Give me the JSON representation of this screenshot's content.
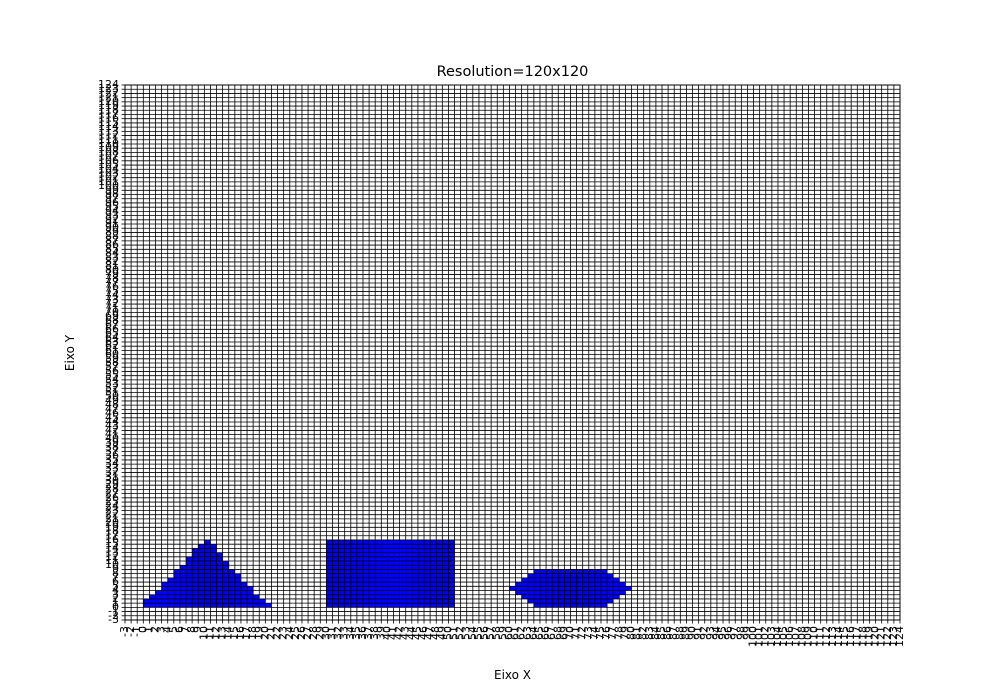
{
  "chart_data": {
    "type": "heatmap",
    "title": "Resolution=120x120",
    "xlabel": "Eixo X",
    "ylabel": "Eixo Y",
    "xlim": [
      -3,
      124
    ],
    "ylim": [
      -3,
      124
    ],
    "grid": true,
    "grid_color": "#000000",
    "fill_color": "#0000ff",
    "background": "#ffffff",
    "x_ticks": [
      -3,
      -2,
      -1,
      0,
      1,
      2,
      3,
      4,
      5,
      6,
      7,
      8,
      9,
      10,
      11,
      12,
      13,
      14,
      15,
      16,
      17,
      18,
      19,
      20,
      21,
      22,
      23,
      24,
      25,
      26,
      27,
      28,
      29,
      30,
      31,
      32,
      33,
      34,
      35,
      36,
      37,
      38,
      39,
      40,
      41,
      42,
      43,
      44,
      45,
      46,
      47,
      48,
      49,
      50,
      51,
      52,
      53,
      54,
      55,
      56,
      57,
      58,
      59,
      60,
      61,
      62,
      63,
      64,
      65,
      66,
      67,
      68,
      69,
      70,
      71,
      72,
      73,
      74,
      75,
      76,
      77,
      78,
      79,
      80,
      81,
      82,
      83,
      84,
      85,
      86,
      87,
      88,
      89,
      90,
      91,
      92,
      93,
      94,
      95,
      96,
      97,
      98,
      99,
      100,
      101,
      102,
      103,
      104,
      105,
      106,
      107,
      108,
      109,
      110,
      111,
      112,
      113,
      114,
      115,
      116,
      117,
      118,
      119,
      120,
      121,
      122,
      123,
      124
    ],
    "y_ticks": [
      -3,
      -2,
      -1,
      0,
      1,
      2,
      3,
      4,
      5,
      6,
      7,
      8,
      9,
      10,
      11,
      12,
      13,
      14,
      15,
      16,
      17,
      18,
      19,
      20,
      21,
      22,
      23,
      24,
      25,
      26,
      27,
      28,
      29,
      30,
      31,
      32,
      33,
      34,
      35,
      36,
      37,
      38,
      39,
      40,
      41,
      42,
      43,
      44,
      45,
      46,
      47,
      48,
      49,
      50,
      51,
      52,
      53,
      54,
      55,
      56,
      57,
      58,
      59,
      60,
      61,
      62,
      63,
      64,
      65,
      66,
      67,
      68,
      69,
      70,
      71,
      72,
      73,
      74,
      75,
      76,
      77,
      78,
      79,
      80,
      81,
      82,
      83,
      84,
      85,
      86,
      87,
      88,
      89,
      90,
      91,
      92,
      93,
      94,
      95,
      96,
      97,
      98,
      99,
      100,
      101,
      102,
      103,
      104,
      105,
      106,
      107,
      108,
      109,
      110,
      111,
      112,
      113,
      114,
      115,
      116,
      117,
      118,
      119,
      120,
      121,
      122,
      123,
      124
    ],
    "filled_cells": [
      {
        "shape": "triangle",
        "y": 0,
        "x_from": 0,
        "x_to": 20
      },
      {
        "shape": "triangle",
        "y": 1,
        "x_from": 0,
        "x_to": 19
      },
      {
        "shape": "triangle",
        "y": 2,
        "x_from": 1,
        "x_to": 18
      },
      {
        "shape": "triangle",
        "y": 3,
        "x_from": 2,
        "x_to": 17
      },
      {
        "shape": "triangle",
        "y": 4,
        "x_from": 3,
        "x_to": 17
      },
      {
        "shape": "triangle",
        "y": 5,
        "x_from": 3,
        "x_to": 16
      },
      {
        "shape": "triangle",
        "y": 6,
        "x_from": 4,
        "x_to": 15
      },
      {
        "shape": "triangle",
        "y": 7,
        "x_from": 5,
        "x_to": 15
      },
      {
        "shape": "triangle",
        "y": 8,
        "x_from": 5,
        "x_to": 14
      },
      {
        "shape": "triangle",
        "y": 9,
        "x_from": 6,
        "x_to": 13
      },
      {
        "shape": "triangle",
        "y": 10,
        "x_from": 7,
        "x_to": 13
      },
      {
        "shape": "triangle",
        "y": 11,
        "x_from": 7,
        "x_to": 12
      },
      {
        "shape": "triangle",
        "y": 12,
        "x_from": 8,
        "x_to": 12
      },
      {
        "shape": "triangle",
        "y": 13,
        "x_from": 8,
        "x_to": 11
      },
      {
        "shape": "triangle",
        "y": 14,
        "x_from": 9,
        "x_to": 11
      },
      {
        "shape": "triangle",
        "y": 15,
        "x_from": 10,
        "x_to": 10
      },
      {
        "shape": "rectangle",
        "y_from": 0,
        "y_to": 15,
        "x_from": 30,
        "x_to": 50
      },
      {
        "shape": "hexagon",
        "y": 0,
        "x_from": 64,
        "x_to": 75
      },
      {
        "shape": "hexagon",
        "y": 1,
        "x_from": 63,
        "x_to": 76
      },
      {
        "shape": "hexagon",
        "y": 2,
        "x_from": 62,
        "x_to": 77
      },
      {
        "shape": "hexagon",
        "y": 3,
        "x_from": 61,
        "x_to": 78
      },
      {
        "shape": "hexagon",
        "y": 4,
        "x_from": 60,
        "x_to": 79
      },
      {
        "shape": "hexagon",
        "y": 5,
        "x_from": 61,
        "x_to": 78
      },
      {
        "shape": "hexagon",
        "y": 6,
        "x_from": 62,
        "x_to": 77
      },
      {
        "shape": "hexagon",
        "y": 7,
        "x_from": 63,
        "x_to": 76
      },
      {
        "shape": "hexagon",
        "y": 8,
        "x_from": 64,
        "x_to": 75
      }
    ]
  }
}
